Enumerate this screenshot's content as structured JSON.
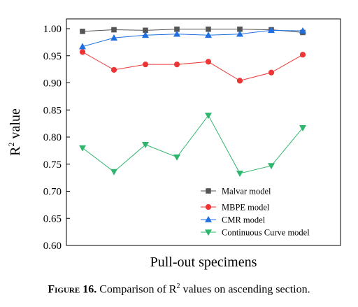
{
  "chart_data": {
    "type": "line",
    "xlabel": "Pull-out specimens",
    "ylabel": "R² value",
    "ylabel_base": "R",
    "ylabel_sup": "2",
    "ylabel_rest": " value",
    "ylim": [
      0.6,
      1.0
    ],
    "yticks": [
      "0.60",
      "0.65",
      "0.70",
      "0.75",
      "0.80",
      "0.85",
      "0.90",
      "0.95",
      "1.00"
    ],
    "x": [
      1,
      2,
      3,
      4,
      5,
      6,
      7,
      8
    ],
    "xtick_labels_shown": false,
    "grid": false,
    "legend_position": "lower-right",
    "series": [
      {
        "name": "Malvar model",
        "color": "#555555",
        "marker": "square",
        "values": [
          0.995,
          0.998,
          0.997,
          0.999,
          0.999,
          0.999,
          0.998,
          0.993
        ]
      },
      {
        "name": "MBPE model",
        "color": "#ee3535",
        "marker": "circle",
        "values": [
          0.957,
          0.924,
          0.934,
          0.934,
          0.939,
          0.904,
          0.919,
          0.952
        ]
      },
      {
        "name": "CMR model",
        "color": "#1f6fe0",
        "marker": "triangle-up",
        "values": [
          0.967,
          0.983,
          0.988,
          0.99,
          0.988,
          0.99,
          0.997,
          0.996
        ]
      },
      {
        "name": "Continuous Curve model",
        "color": "#2fb56e",
        "marker": "triangle-down",
        "values": [
          0.78,
          0.736,
          0.786,
          0.763,
          0.84,
          0.733,
          0.747,
          0.817
        ]
      }
    ]
  },
  "caption": {
    "label": "Figure 16.",
    "text_before": " Comparison of R",
    "text_sup": "2",
    "text_after": " values on ascending section."
  }
}
